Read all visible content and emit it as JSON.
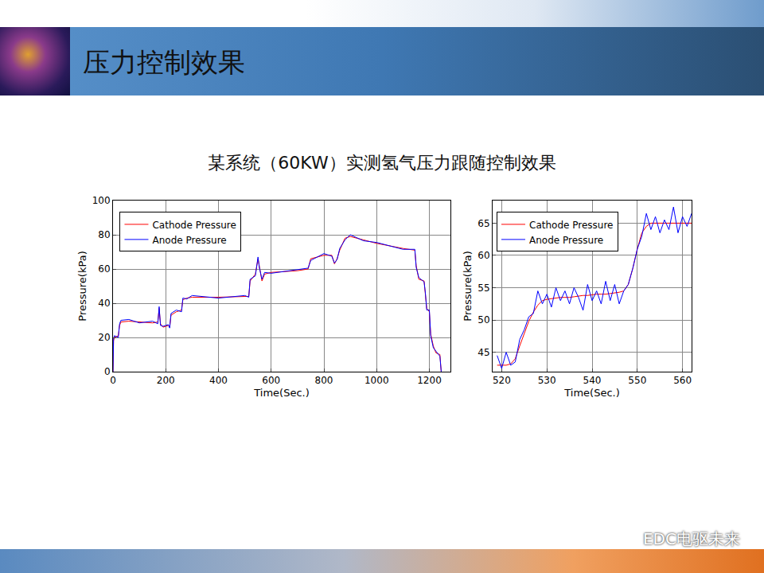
{
  "header": {
    "title": "压力控制效果"
  },
  "subtitle": "某系统（60KW）实测氢气压力跟随控制效果",
  "watermark": "EDC电驱未来",
  "chart_data": [
    {
      "type": "line",
      "xlabel": "Time(Sec.)",
      "ylabel": "Pressure(kPa)",
      "x": [
        0,
        2,
        5,
        20,
        25,
        30,
        60,
        100,
        150,
        170,
        175,
        180,
        190,
        210,
        215,
        220,
        240,
        260,
        265,
        280,
        300,
        400,
        500,
        515,
        520,
        540,
        550,
        555,
        565,
        575,
        600,
        700,
        740,
        750,
        800,
        830,
        840,
        850,
        860,
        880,
        900,
        950,
        1000,
        1100,
        1145,
        1150,
        1160,
        1180,
        1185,
        1190,
        1200,
        1205,
        1215,
        1225,
        1240,
        1245
      ],
      "series": [
        {
          "name": "Cathode Pressure",
          "color": "#ff0000",
          "values": [
            0,
            18,
            20,
            21,
            27,
            29,
            29.5,
            29,
            28.5,
            29,
            37,
            28,
            26,
            27,
            26,
            33,
            35,
            36,
            42,
            43,
            43.5,
            43.5,
            44,
            44,
            53,
            57,
            66,
            62,
            53,
            57,
            58,
            59,
            60,
            66,
            68,
            68,
            63,
            66,
            71,
            78,
            79,
            77,
            75,
            72,
            71,
            62,
            54,
            53,
            45,
            37,
            35,
            22,
            15,
            11,
            10,
            0
          ]
        },
        {
          "name": "Anode Pressure",
          "color": "#0000ff",
          "values": [
            0,
            19,
            21,
            20,
            28,
            30,
            30.5,
            28.5,
            29.5,
            28,
            38,
            27,
            26.5,
            27.5,
            25.5,
            34,
            36,
            35,
            43,
            42.5,
            44.5,
            43,
            44.5,
            43.5,
            54,
            56,
            67,
            61,
            54,
            58,
            57.5,
            59.5,
            60.5,
            65,
            69,
            67.5,
            63.5,
            65.5,
            72,
            77,
            80,
            76.5,
            75.5,
            71.5,
            71.5,
            61,
            55,
            52.5,
            46,
            36,
            36,
            21,
            14,
            12,
            9,
            0
          ]
        }
      ],
      "xlim": [
        0,
        1280
      ],
      "xticks": [
        0,
        200,
        400,
        600,
        800,
        1000,
        1200
      ],
      "ylim": [
        0,
        100
      ],
      "yticks": [
        0,
        20,
        40,
        60,
        80,
        100
      ],
      "grid": true,
      "legend": "top left"
    },
    {
      "type": "line",
      "xlabel": "Time(Sec.)",
      "ylabel": "Pressure(kPa)",
      "x": [
        519,
        520,
        521,
        522,
        523,
        524,
        525,
        526,
        527,
        528,
        529,
        530,
        531,
        532,
        533,
        534,
        535,
        536,
        537,
        538,
        539,
        540,
        541,
        542,
        543,
        544,
        545,
        546,
        547,
        548,
        549,
        550,
        551,
        552,
        553,
        554,
        555,
        556,
        557,
        558,
        559,
        560,
        561,
        562
      ],
      "series": [
        {
          "name": "Cathode Pressure",
          "color": "#ff0000",
          "values": [
            43,
            43,
            43,
            43.2,
            44,
            46,
            48,
            49.8,
            51.2,
            52.3,
            53,
            53.2,
            53.3,
            53.4,
            53.5,
            53.5,
            53.5,
            53.6,
            53.7,
            53.8,
            53.8,
            53.9,
            54,
            54,
            54,
            54.1,
            54.2,
            54.3,
            54.5,
            55.5,
            58,
            61,
            63.5,
            64.5,
            65,
            65,
            65,
            65,
            65,
            65,
            65,
            65,
            65,
            65
          ]
        },
        {
          "name": "Anode Pressure",
          "color": "#0000ff",
          "values": [
            44.5,
            42.5,
            45,
            43,
            43.5,
            47,
            48.5,
            50.5,
            51,
            54.5,
            52.5,
            54,
            52,
            55,
            53,
            54.5,
            52.5,
            55,
            53.5,
            51.5,
            55.5,
            53,
            54.5,
            52.5,
            56,
            53,
            55.5,
            52.5,
            54.5,
            55.5,
            58,
            61,
            63,
            66.5,
            64,
            66,
            63.5,
            65.5,
            64,
            67.5,
            63.5,
            66,
            64.5,
            66.5
          ]
        }
      ],
      "xlim": [
        518,
        562
      ],
      "xticks": [
        520,
        530,
        540,
        550,
        560
      ],
      "ylim": [
        42,
        68.5
      ],
      "yticks": [
        45,
        50,
        55,
        60,
        65
      ],
      "grid": true,
      "legend": "top left"
    }
  ]
}
